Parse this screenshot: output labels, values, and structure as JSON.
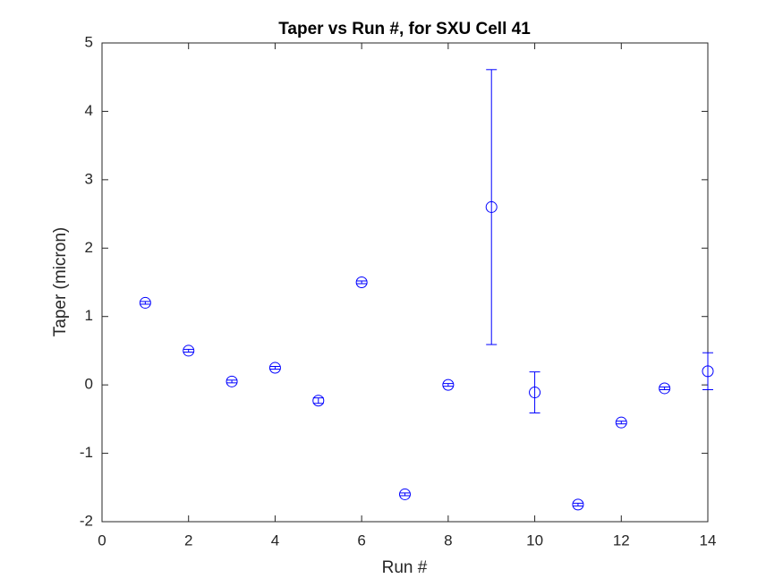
{
  "chart_data": {
    "type": "errorbar",
    "title": "Taper vs Run #, for SXU Cell 41",
    "x_label": "Run #",
    "y_label": "Taper (micron)",
    "xlim": [
      0,
      14
    ],
    "xticks": [
      0,
      2,
      4,
      6,
      8,
      10,
      12,
      14
    ],
    "ylim": [
      -2,
      5
    ],
    "yticks": [
      -2,
      -1,
      0,
      1,
      2,
      3,
      4,
      5
    ],
    "series": [
      {
        "name": "Taper",
        "color": "#0000ff",
        "x": [
          1,
          2,
          3,
          4,
          5,
          6,
          7,
          8,
          9,
          10,
          11,
          12,
          13,
          14
        ],
        "values": [
          1.2,
          0.5,
          0.05,
          0.25,
          -0.23,
          1.5,
          -1.6,
          0.0,
          2.6,
          -0.11,
          -1.75,
          -0.55,
          -0.05,
          0.2
        ],
        "errors": [
          0.02,
          0.02,
          0.02,
          0.02,
          0.04,
          0.02,
          0.02,
          0.02,
          2.01,
          0.3,
          0.02,
          0.02,
          0.02,
          0.27
        ]
      }
    ]
  }
}
